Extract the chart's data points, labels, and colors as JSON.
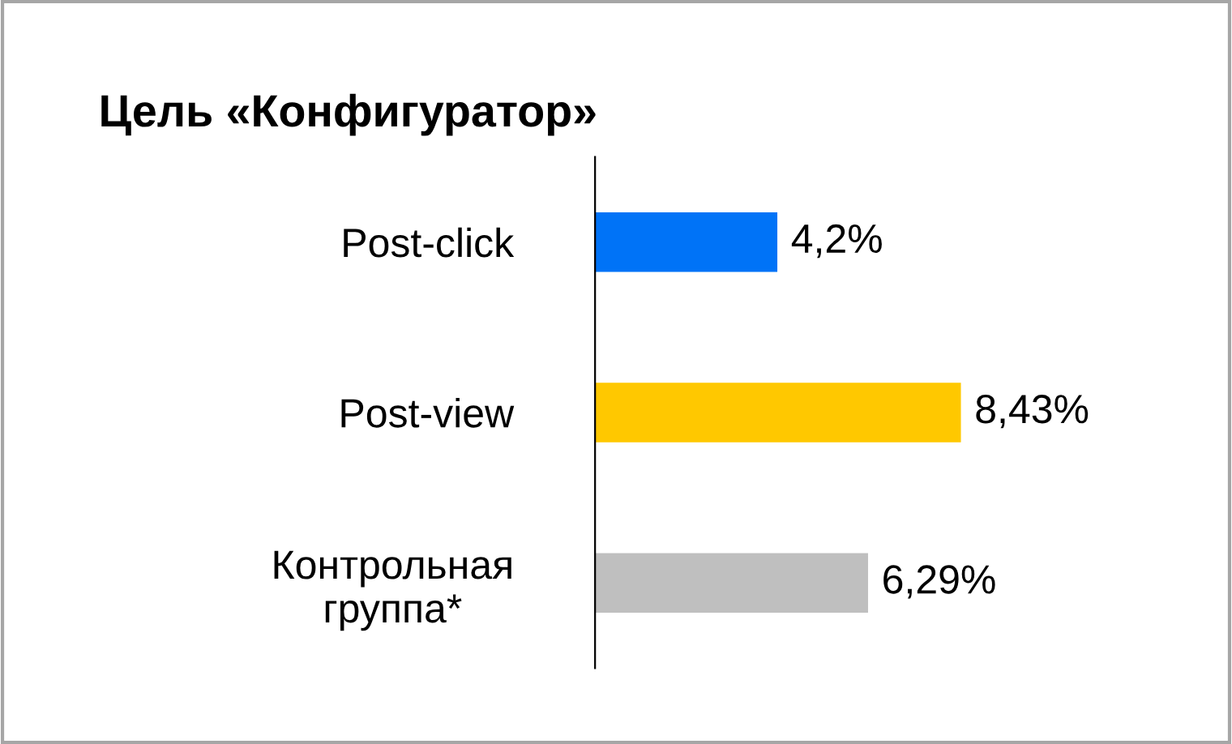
{
  "chart_data": {
    "type": "bar",
    "orientation": "horizontal",
    "title": "Цель «Конфигуратор»",
    "categories": [
      "Post-click",
      "Post-view",
      "Контрольная\nгруппа*"
    ],
    "values": [
      4.2,
      8.43,
      6.29
    ],
    "colors": [
      "#0073f7",
      "#ffc800",
      "#bfbfbf"
    ],
    "value_labels": [
      "4,2%",
      "8,43%",
      "6,29%"
    ],
    "grid": false,
    "legend": false
  }
}
